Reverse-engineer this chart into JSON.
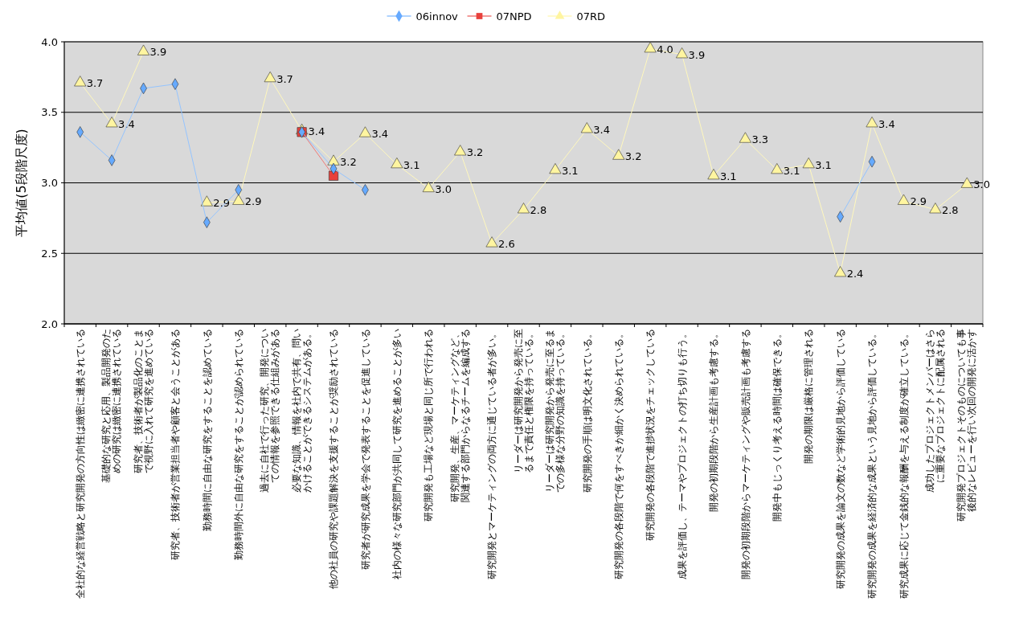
{
  "chart_data": {
    "type": "line",
    "ylabel": "平均値(5段階尺度)",
    "categories": [
      "全社的な経営戦略と研究開発の方向性は緻密に連携されている",
      "基礎的な研究と応用、製品開発のための研究は緻密に連携されている",
      "研究者、技術者が製品化のことまで視野に入れて研究を進めている",
      "研究者、技術者が営業担当者や顧客と会うことがある",
      "勤務時間に自由な研究をすることを認めている",
      "勤務時間外に自由な研究をすることが認められている",
      "過去に自社で行った研究、開発についての情報を参照できる仕組みがある",
      "必要な知識、情報を社内で共有、問いかけることができるシステムがある。",
      "他の社員の研究や課題解決を支援することが奨励されている",
      "研究者が研究成果を学会で発表することを促進している",
      "社内の様々な研究部門が共同して研究を進めることが多い",
      "研究開発も工場など現場と同じ所で行われる",
      "研究開発、生産、マーケティングなど、関連する部門からなるチームを編成する",
      "研究開発とマーケティングの両方に通じている者が多い。",
      "リーダーは研究開発から発売に至るまで責任と権限を持っている。",
      "リーダーは研究開発から発売に至るまでの多様な分野の知識を持っている。",
      "研究開発の手順は明文化されている。",
      "研究開発の各段階で何をすべきか細かく決められている。",
      "研究開発の各段階で進捗状況をチェックしている",
      "成果を評価し、テーマやプロジェクトの打ち切りも行う。",
      "開発の初期段階から生産計画も考慮する。",
      "開発の初期段階からマーケティングや販売計画も考慮する",
      "開発中もじっくり考える時間は確保できる。",
      "開発の期限は厳格に管理される",
      "研究開発の成果を論文の数など学術的見地から評価している",
      "研究開発の成果を経済的な成果という見地から評価している。",
      "研究成果に応じて金銭的な報酬を与える制度が確立している。",
      "成功したプロジェクトメンバーはさらに重要なプロジェクトに配属される",
      "研究開発プロジェクトそのものについても事後的なレビューを行い次回の開発に活かす"
    ],
    "series": [
      {
        "name": "06innov",
        "color": "#66aaff",
        "marker": "diamond",
        "values": [
          3.36,
          3.16,
          3.67,
          3.7,
          2.72,
          2.95,
          null,
          3.36,
          3.1,
          2.95,
          null,
          null,
          null,
          null,
          null,
          null,
          null,
          null,
          null,
          null,
          null,
          null,
          null,
          null,
          2.76,
          3.15,
          null,
          null,
          null
        ]
      },
      {
        "name": "07NPD",
        "color": "#e8413c",
        "marker": "square",
        "values": [
          null,
          null,
          null,
          null,
          null,
          null,
          null,
          3.36,
          3.05,
          null,
          null,
          null,
          null,
          null,
          null,
          null,
          null,
          null,
          null,
          null,
          null,
          null,
          null,
          null,
          null,
          null,
          null,
          null,
          null
        ]
      },
      {
        "name": "07RD",
        "color": "#fff5a0",
        "marker": "triangle",
        "values": [
          3.71,
          3.42,
          3.93,
          null,
          2.86,
          2.87,
          3.74,
          3.37,
          3.15,
          3.35,
          3.13,
          2.96,
          3.22,
          2.57,
          2.81,
          3.09,
          3.38,
          3.19,
          3.95,
          3.91,
          3.05,
          3.31,
          3.09,
          3.13,
          2.36,
          3.42,
          2.87,
          2.81,
          2.99
        ],
        "value_labels": [
          "3.7",
          "3.4",
          "3.9",
          null,
          "2.9",
          "2.9",
          "3.7",
          "3.4",
          "3.2",
          "3.4",
          "3.1",
          "3.0",
          "3.2",
          "2.6",
          "2.8",
          "3.1",
          "3.4",
          "3.2",
          "4.0",
          "3.9",
          "3.1",
          "3.3",
          "3.1",
          "3.1",
          "2.4",
          "3.4",
          "2.9",
          "2.8",
          "3.0"
        ]
      }
    ],
    "ylim": [
      2,
      4
    ],
    "yticks": [
      {
        "value": 2,
        "label": "2.0"
      },
      {
        "value": 2.5,
        "label": "2.5"
      },
      {
        "value": 3,
        "label": "3.0"
      },
      {
        "value": 3.5,
        "label": "3.5"
      },
      {
        "value": 4,
        "label": "4.0"
      }
    ],
    "grid": "y",
    "legend": "top"
  }
}
